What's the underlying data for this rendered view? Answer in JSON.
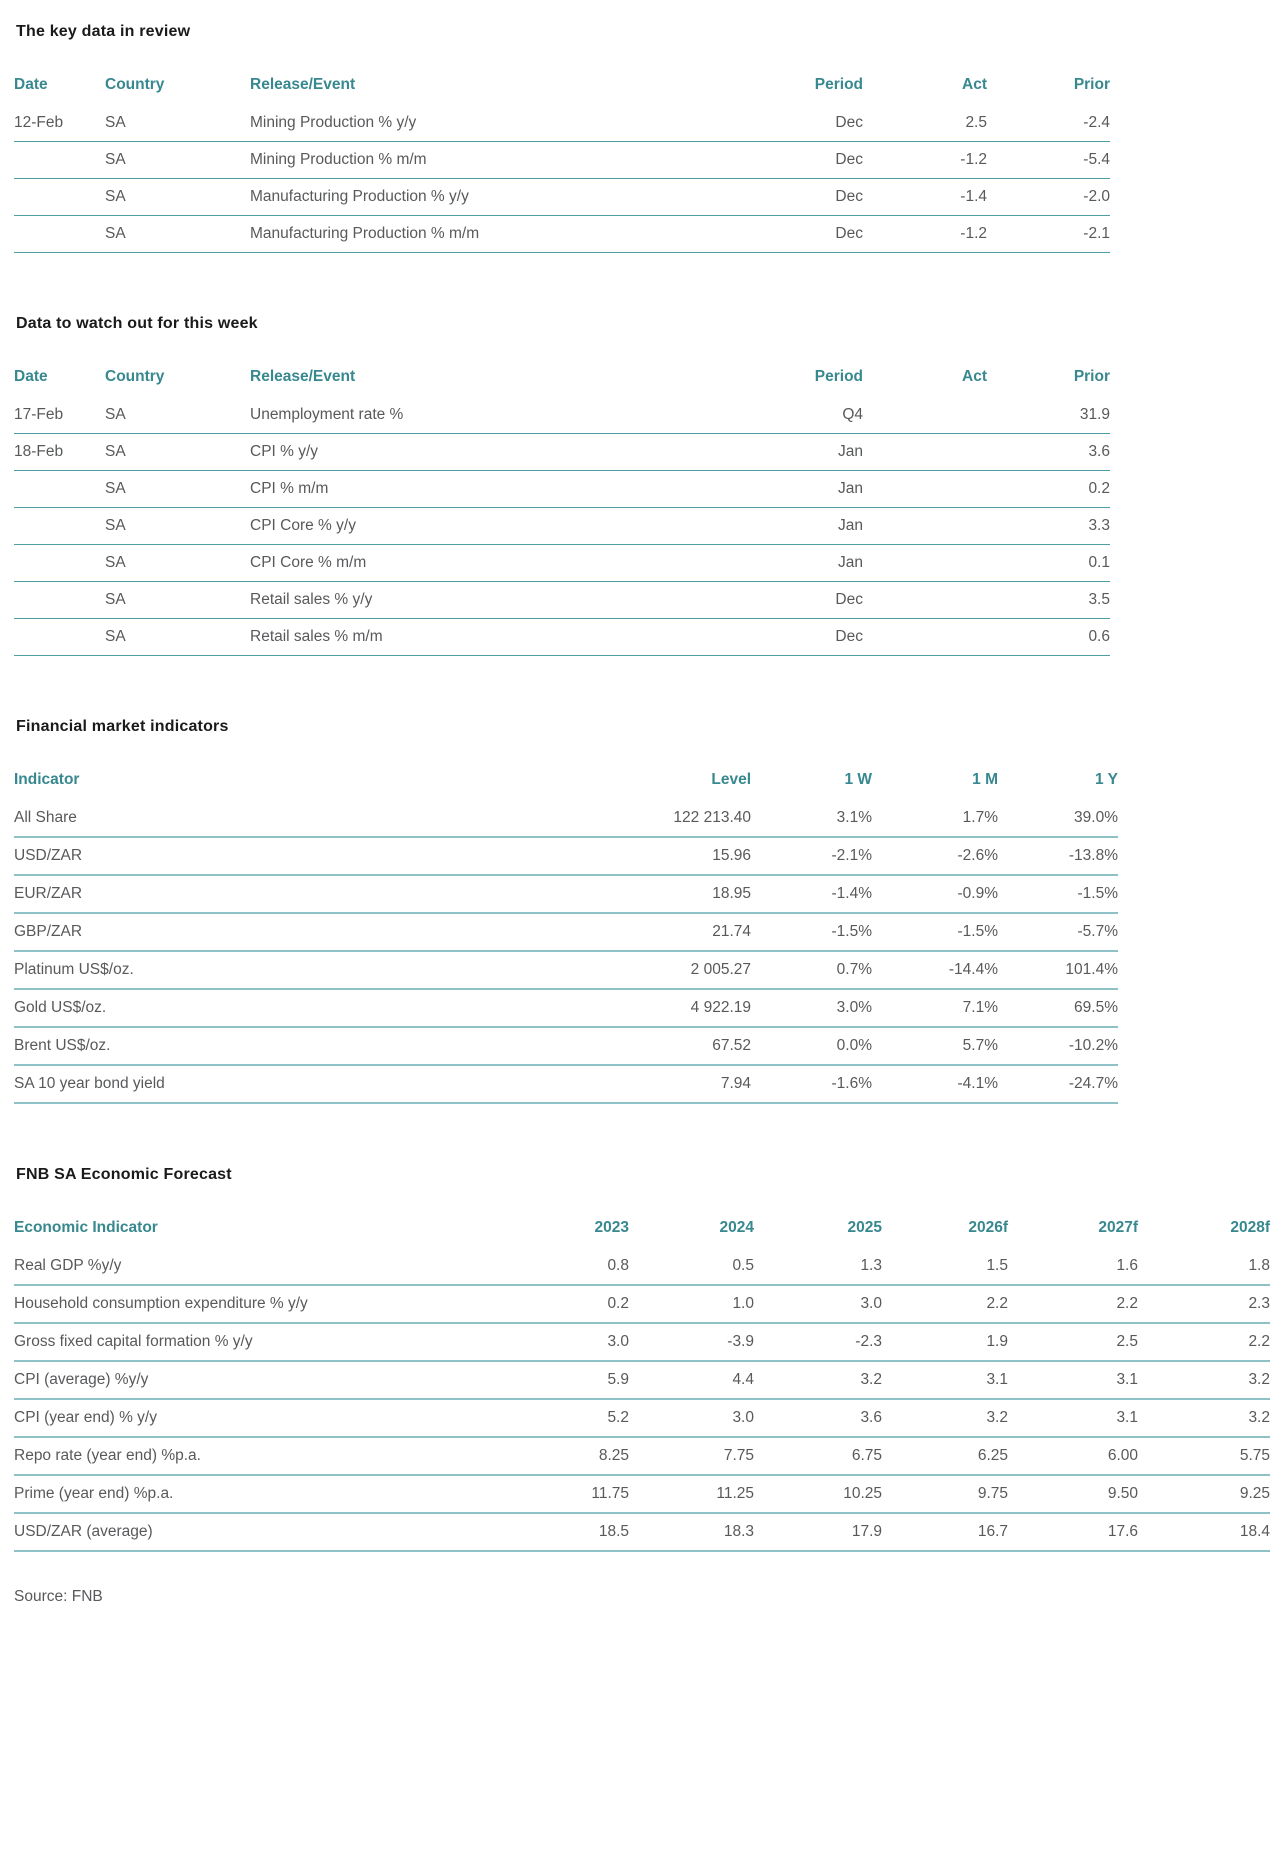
{
  "page": {
    "source_note": "Source: FNB"
  },
  "colors": {
    "accent_teal": "#37888F",
    "divider_teal_dark": "#4E9EA5",
    "divider_teal_light": "#8FC2C7",
    "body_text": "#58595B",
    "heading_text": "#1A1A1A"
  },
  "sections": [
    {
      "heading": "The key data in review",
      "columns": [
        "Date",
        "Country",
        "Release/Event",
        "Period",
        "Act",
        "Prior"
      ],
      "rows": [
        [
          "12-Feb",
          "SA",
          "Mining Production % y/y",
          "Dec",
          "2.5",
          "-2.4"
        ],
        [
          "",
          "SA",
          "Mining Production % m/m",
          "Dec",
          "-1.2",
          "-5.4"
        ],
        [
          "",
          "SA",
          "Manufacturing Production % y/y",
          "Dec",
          "-1.4",
          "-2.0"
        ],
        [
          "",
          "SA",
          "Manufacturing Production % m/m",
          "Dec",
          "-1.2",
          "-2.1"
        ]
      ]
    },
    {
      "heading": "Data to watch out for this week",
      "columns": [
        "Date",
        "Country",
        "Release/Event",
        "Period",
        "Act",
        "Prior"
      ],
      "rows": [
        [
          "17-Feb",
          "SA",
          "Unemployment rate %",
          "Q4",
          "",
          "31.9"
        ],
        [
          "18-Feb",
          "SA",
          "CPI % y/y",
          "Jan",
          "",
          "3.6"
        ],
        [
          "",
          "SA",
          "CPI % m/m",
          "Jan",
          "",
          "0.2"
        ],
        [
          "",
          "SA",
          "CPI Core % y/y",
          "Jan",
          "",
          "3.3"
        ],
        [
          "",
          "SA",
          "CPI Core % m/m",
          "Jan",
          "",
          "0.1"
        ],
        [
          "",
          "SA",
          "Retail sales % y/y",
          "Dec",
          "",
          "3.5"
        ],
        [
          "",
          "SA",
          "Retail sales % m/m",
          "Dec",
          "",
          "0.6"
        ]
      ]
    },
    {
      "heading": "Financial market indicators",
      "columns": [
        "Indicator",
        "Level",
        "1 W",
        "1 M",
        "1 Y"
      ],
      "rows": [
        [
          "All Share",
          "122 213.40",
          "3.1%",
          "1.7%",
          "39.0%"
        ],
        [
          "USD/ZAR",
          "15.96",
          "-2.1%",
          "-2.6%",
          "-13.8%"
        ],
        [
          "EUR/ZAR",
          "18.95",
          "-1.4%",
          "-0.9%",
          "-1.5%"
        ],
        [
          "GBP/ZAR",
          "21.74",
          "-1.5%",
          "-1.5%",
          "-5.7%"
        ],
        [
          "Platinum US$/oz.",
          "2 005.27",
          "0.7%",
          "-14.4%",
          "101.4%"
        ],
        [
          "Gold US$/oz.",
          "4 922.19",
          "3.0%",
          "7.1%",
          "69.5%"
        ],
        [
          "Brent US$/oz.",
          "67.52",
          "0.0%",
          "5.7%",
          "-10.2%"
        ],
        [
          "SA 10 year bond yield",
          "7.94",
          "-1.6%",
          "-4.1%",
          "-24.7%"
        ]
      ]
    },
    {
      "heading": "FNB SA Economic Forecast",
      "columns": [
        "Economic Indicator",
        "2023",
        "2024",
        "2025",
        "2026f",
        "2027f",
        "2028f"
      ],
      "rows": [
        [
          "Real GDP %y/y",
          "0.8",
          "0.5",
          "1.3",
          "1.5",
          "1.6",
          "1.8"
        ],
        [
          "Household consumption expenditure % y/y",
          "0.2",
          "1.0",
          "3.0",
          "2.2",
          "2.2",
          "2.3"
        ],
        [
          "Gross fixed capital formation % y/y",
          "3.0",
          "-3.9",
          "-2.3",
          "1.9",
          "2.5",
          "2.2"
        ],
        [
          "CPI (average) %y/y",
          "5.9",
          "4.4",
          "3.2",
          "3.1",
          "3.1",
          "3.2"
        ],
        [
          "CPI (year end) % y/y",
          "5.2",
          "3.0",
          "3.6",
          "3.2",
          "3.1",
          "3.2"
        ],
        [
          "Repo rate (year end) %p.a.",
          "8.25",
          "7.75",
          "6.75",
          "6.25",
          "6.00",
          "5.75"
        ],
        [
          "Prime (year end) %p.a.",
          "11.75",
          "11.25",
          "10.25",
          "9.75",
          "9.50",
          "9.25"
        ],
        [
          "USD/ZAR (average)",
          "18.5",
          "18.3",
          "17.9",
          "16.7",
          "17.6",
          "18.4"
        ]
      ]
    }
  ]
}
